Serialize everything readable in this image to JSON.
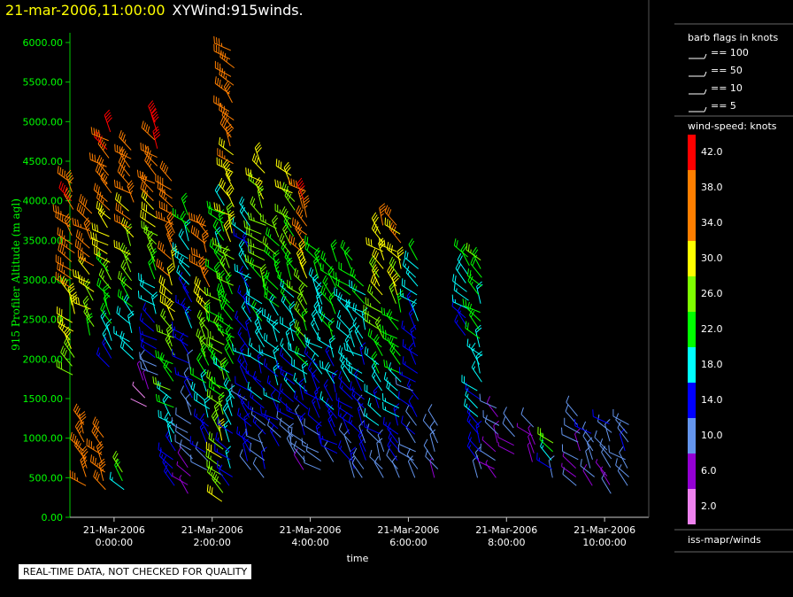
{
  "header": {
    "datetime": "21-mar-2006,11:00:00",
    "plot_name": "XYWind:915winds."
  },
  "notice": "REAL-TIME DATA, NOT CHECKED FOR QUALITY",
  "legend": {
    "barb_title": "barb flags in knots",
    "barb_items": [
      "== 100",
      "== 50",
      "== 10",
      "== 5"
    ],
    "speed_title": "wind-speed: knots",
    "speed_colors": [
      "#ff0000",
      "#ff7f00",
      "#ff7f00",
      "#ffff00",
      "#7fff00",
      "#00ff00",
      "#00ffff",
      "#0000ff",
      "#6495ed",
      "#9400d3",
      "#ee82ee"
    ],
    "source": "iss-mapr/winds"
  },
  "chart_data": {
    "type": "wind-barb profile",
    "ylabel": "915 Profiler Altitude (m agl)",
    "xlabel": "time",
    "ylim": [
      0,
      6000
    ],
    "y_ticks": [
      "0.00",
      "500.00",
      "1000.00",
      "1500.00",
      "2000.00",
      "2500.00",
      "3000.00",
      "3500.00",
      "4000.00",
      "4500.00",
      "5000.00",
      "5500.00",
      "6000.00"
    ],
    "x_ticks": [
      {
        "date": "21-Mar-2006",
        "time": "0:00:00"
      },
      {
        "date": "21-Mar-2006",
        "time": "2:00:00"
      },
      {
        "date": "21-Mar-2006",
        "time": "4:00:00"
      },
      {
        "date": "21-Mar-2006",
        "time": "6:00:00"
      },
      {
        "date": "21-Mar-2006",
        "time": "8:00:00"
      },
      {
        "date": "21-Mar-2006",
        "time": "10:00:00"
      }
    ],
    "xlim_hours": [
      -0.9,
      10.9
    ],
    "speed_scale_knots": [
      "42.0",
      "38.0",
      "34.0",
      "30.0",
      "26.0",
      "22.0",
      "18.0",
      "14.0",
      "10.0",
      "6.0",
      "2.0"
    ],
    "profiles": [
      {
        "t": -0.85,
        "z0": 1800,
        "z1": 4300,
        "s_low": 28,
        "s_high": 40
      },
      {
        "t": -0.6,
        "z0": 400,
        "z1": 1200,
        "s_low": 34,
        "s_high": 36
      },
      {
        "t": -0.45,
        "z0": 2300,
        "z1": 3900,
        "s_low": 24,
        "s_high": 40
      },
      {
        "t": -0.2,
        "z0": 350,
        "z1": 1100,
        "s_low": 34,
        "s_high": 36
      },
      {
        "t": -0.1,
        "z0": 1900,
        "z1": 4900,
        "s_low": 14,
        "s_high": 42
      },
      {
        "t": 0.2,
        "z0": 350,
        "z1": 650,
        "s_low": 18,
        "s_high": 28
      },
      {
        "t": 0.35,
        "z0": 2000,
        "z1": 4700,
        "s_low": 16,
        "s_high": 40
      },
      {
        "t": 0.65,
        "z0": 1400,
        "z1": 1900,
        "s_low": 4,
        "s_high": 10
      },
      {
        "t": 0.85,
        "z0": 1800,
        "z1": 5000,
        "s_low": 10,
        "s_high": 42
      },
      {
        "t": 1.2,
        "z0": 400,
        "z1": 4300,
        "s_low": 14,
        "s_high": 40
      },
      {
        "t": 1.55,
        "z0": 300,
        "z1": 3900,
        "s_low": 6,
        "s_high": 22
      },
      {
        "t": 1.9,
        "z0": 600,
        "z1": 3700,
        "s_low": 10,
        "s_high": 40
      },
      {
        "t": 2.2,
        "z0": 200,
        "z1": 4000,
        "s_low": 28,
        "s_high": 20
      },
      {
        "t": 2.4,
        "z0": 400,
        "z1": 5900,
        "s_low": 14,
        "s_high": 38
      },
      {
        "t": 2.75,
        "z0": 600,
        "z1": 3800,
        "s_low": 12,
        "s_high": 18
      },
      {
        "t": 3.05,
        "z0": 500,
        "z1": 4500,
        "s_low": 10,
        "s_high": 30
      },
      {
        "t": 3.35,
        "z0": 900,
        "z1": 3700,
        "s_low": 12,
        "s_high": 26
      },
      {
        "t": 3.65,
        "z0": 800,
        "z1": 4400,
        "s_low": 10,
        "s_high": 30
      },
      {
        "t": 3.9,
        "z0": 600,
        "z1": 4200,
        "s_low": 8,
        "s_high": 40
      },
      {
        "t": 4.2,
        "z0": 600,
        "z1": 3400,
        "s_low": 10,
        "s_high": 22
      },
      {
        "t": 4.5,
        "z0": 700,
        "z1": 3300,
        "s_low": 12,
        "s_high": 24
      },
      {
        "t": 4.85,
        "z0": 500,
        "z1": 3300,
        "s_low": 12,
        "s_high": 22
      },
      {
        "t": 5.1,
        "z0": 500,
        "z1": 3000,
        "s_low": 10,
        "s_high": 22
      },
      {
        "t": 5.45,
        "z0": 500,
        "z1": 3700,
        "s_low": 10,
        "s_high": 34
      },
      {
        "t": 5.8,
        "z0": 500,
        "z1": 3700,
        "s_low": 10,
        "s_high": 34
      },
      {
        "t": 6.15,
        "z0": 500,
        "z1": 3300,
        "s_low": 8,
        "s_high": 20
      },
      {
        "t": 6.55,
        "z0": 500,
        "z1": 1200,
        "s_low": 8,
        "s_high": 12
      },
      {
        "t": 7.2,
        "z0": 2300,
        "z1": 3300,
        "s_low": 12,
        "s_high": 22
      },
      {
        "t": 7.45,
        "z0": 500,
        "z1": 3300,
        "s_low": 12,
        "s_high": 24
      },
      {
        "t": 7.8,
        "z0": 500,
        "z1": 1400,
        "s_low": 6,
        "s_high": 10
      },
      {
        "t": 8.15,
        "z0": 800,
        "z1": 1200,
        "s_low": 6,
        "s_high": 10
      },
      {
        "t": 8.55,
        "z0": 700,
        "z1": 1200,
        "s_low": 6,
        "s_high": 10
      },
      {
        "t": 8.9,
        "z0": 500,
        "z1": 1000,
        "s_low": 10,
        "s_high": 28
      },
      {
        "t": 9.45,
        "z0": 400,
        "z1": 1300,
        "s_low": 8,
        "s_high": 10
      },
      {
        "t": 9.75,
        "z0": 400,
        "z1": 1100,
        "s_low": 8,
        "s_high": 12
      },
      {
        "t": 10.1,
        "z0": 300,
        "z1": 1200,
        "s_low": 8,
        "s_high": 12
      },
      {
        "t": 10.45,
        "z0": 400,
        "z1": 1200,
        "s_low": 10,
        "s_high": 12
      }
    ]
  }
}
